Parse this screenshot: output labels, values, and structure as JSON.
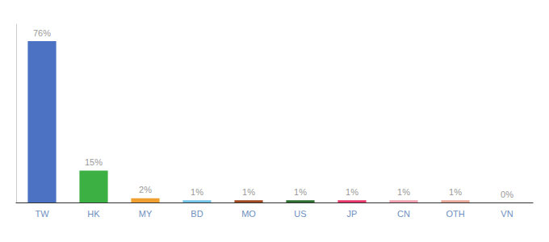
{
  "chart_data": {
    "type": "bar",
    "categories": [
      "TW",
      "HK",
      "MY",
      "BD",
      "MO",
      "US",
      "JP",
      "CN",
      "OTH",
      "VN"
    ],
    "values": [
      76,
      15,
      2,
      1,
      1,
      1,
      1,
      1,
      1,
      0
    ],
    "value_labels": [
      "76%",
      "15%",
      "2%",
      "1%",
      "1%",
      "1%",
      "1%",
      "1%",
      "1%",
      "0%"
    ],
    "colors": [
      "#4C72C4",
      "#3CB043",
      "#F0A030",
      "#72C4E8",
      "#A04820",
      "#2A6E30",
      "#E8356A",
      "#F0A0B0",
      "#E8A898",
      "#CCCCCC"
    ],
    "ylim": [
      0,
      84
    ],
    "data_labels": true,
    "tick_labels": "x",
    "grid": false
  }
}
